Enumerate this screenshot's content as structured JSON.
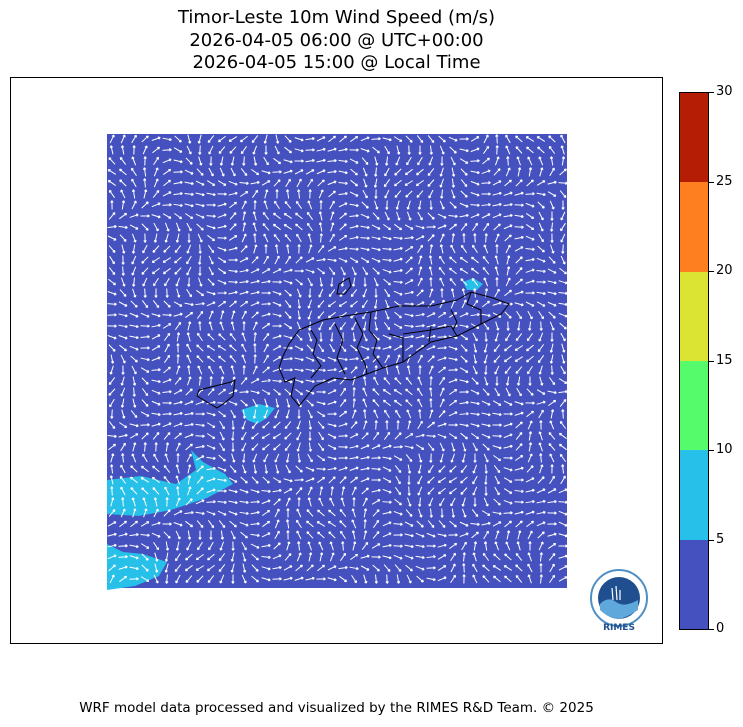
{
  "title": {
    "line1": "Timor-Leste 10m Wind Speed (m/s)",
    "line2": "2026-04-05 06:00 @ UTC+00:00",
    "line3": "2026-04-05 15:00 @ Local Time"
  },
  "colorbar": {
    "ticks": [
      "0",
      "5",
      "10",
      "15",
      "20",
      "25",
      "30"
    ],
    "colors": [
      "#4551bf",
      "#26c0e9",
      "#55fb6b",
      "#dbe432",
      "#fe7f20",
      "#b51e04"
    ]
  },
  "map": {
    "background_speed_color": "#4551bf",
    "highlight_color": "#26c0e9",
    "arrow_color": "#ffffff",
    "outline_color": "#000000"
  },
  "logo": {
    "name": "RIMES",
    "ring_text": "Regional Integrated Multi-Hazard Early Warning System"
  },
  "footer": "WRF model data processed and visualized by the RIMES R&D Team. © 2025"
}
